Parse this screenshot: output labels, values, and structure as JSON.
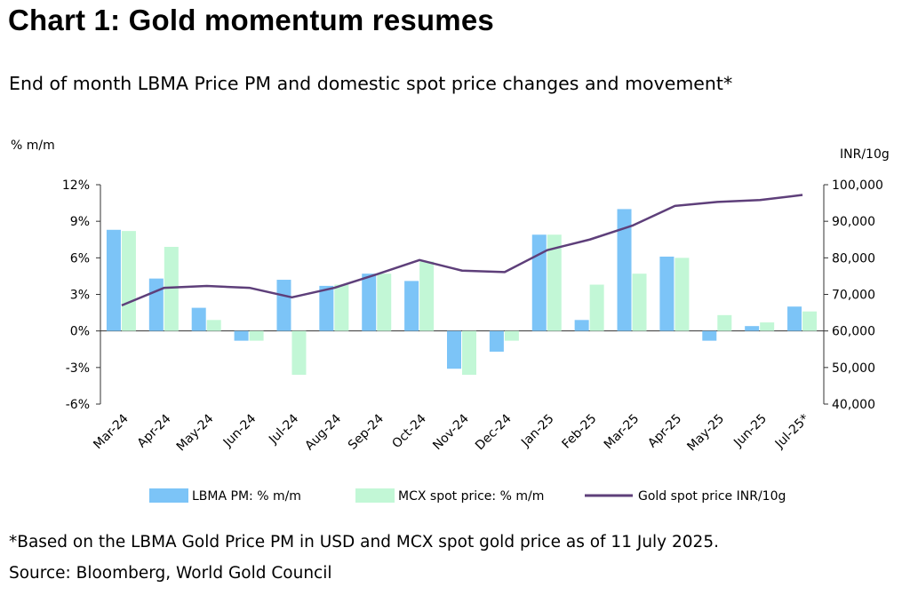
{
  "title": "Chart 1: Gold momentum resumes",
  "subtitle": "End of month LBMA Price PM and domestic spot price changes and movement*",
  "footnote": "*Based on the LBMA Gold Price PM in USD and MCX spot gold price as of 11 July 2025.",
  "source": "Source: Bloomberg, World Gold Council",
  "colors": {
    "lbma": "#7cc4f7",
    "mcx": "#c2f7d6",
    "line": "#5e3f7a",
    "axis": "#333333"
  },
  "chart_data": {
    "type": "bar",
    "left_axis_label": "% m/m",
    "right_axis_label": "INR/10g",
    "categories": [
      "Mar-24",
      "Apr-24",
      "May-24",
      "Jun-24",
      "Jul-24",
      "Aug-24",
      "Sep-24",
      "Oct-24",
      "Nov-24",
      "Dec-24",
      "Jan-25",
      "Feb-25",
      "Mar-25",
      "Apr-25",
      "May-25",
      "Jun-25",
      "Jul-25*"
    ],
    "y_left": {
      "min": -6,
      "max": 12,
      "ticks": [
        12,
        9,
        6,
        3,
        0,
        -3,
        -6
      ],
      "tick_labels": [
        "12%",
        "9%",
        "6%",
        "3%",
        "0%",
        "-3%",
        "-6%"
      ]
    },
    "y_right": {
      "min": 40000,
      "max": 100000,
      "ticks": [
        100000,
        90000,
        80000,
        70000,
        60000,
        50000,
        40000
      ],
      "tick_labels": [
        "100,000",
        "90,000",
        "80,000",
        "70,000",
        "60,000",
        "50,000",
        "40,000"
      ]
    },
    "series": [
      {
        "name": "LBMA PM: % m/m",
        "kind": "bar",
        "axis": "left",
        "values": [
          8.3,
          4.3,
          1.9,
          -0.8,
          4.2,
          3.7,
          4.7,
          4.1,
          -3.1,
          -1.7,
          7.9,
          0.9,
          10.0,
          6.1,
          -0.8,
          0.4,
          2.0
        ]
      },
      {
        "name": "MCX spot price: % m/m",
        "kind": "bar",
        "axis": "left",
        "values": [
          8.2,
          6.9,
          0.9,
          -0.8,
          -3.6,
          3.8,
          4.7,
          5.7,
          -3.6,
          -0.8,
          7.9,
          3.8,
          4.7,
          6.0,
          1.3,
          0.7,
          1.6
        ]
      },
      {
        "name": "Gold spot price INR/10g",
        "kind": "line",
        "axis": "right",
        "values": [
          67000,
          71800,
          72300,
          71800,
          69200,
          71800,
          75500,
          79400,
          76500,
          76100,
          82100,
          85000,
          88800,
          94200,
          95300,
          95800,
          97200
        ]
      }
    ],
    "legend_position": "bottom",
    "grid": false
  }
}
